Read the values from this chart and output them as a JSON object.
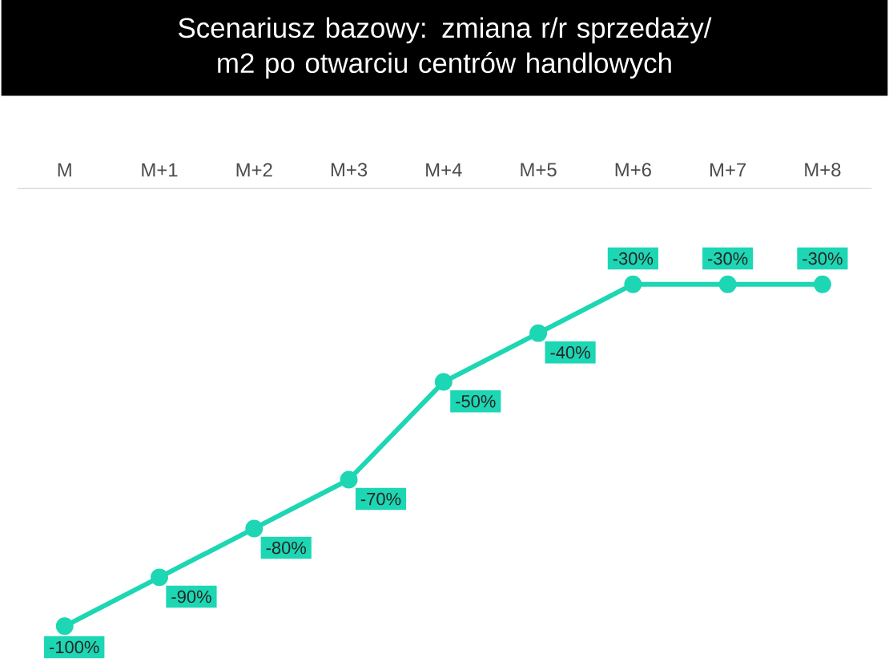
{
  "chart_data": {
    "type": "line",
    "title": "Scenariusz bazowy: zmiana r/r sprzedaży/ m2 po otwarciu centrów handlowych",
    "categories": [
      "M",
      "M+1",
      "M+2",
      "M+3",
      "M+4",
      "M+5",
      "M+6",
      "M+7",
      "M+8"
    ],
    "series": [
      {
        "color": "#1dd6b4",
        "values": [
          -100,
          -90,
          -80,
          -70,
          -50,
          -40,
          -30,
          -30,
          -30
        ],
        "value_labels": [
          "-100%",
          "-90%",
          "-80%",
          "-70%",
          "-50%",
          "-40%",
          "-30%",
          "-30%",
          "-30%"
        ]
      }
    ],
    "tick_labels": "x",
    "marker": "circle",
    "line_style": "solid"
  }
}
